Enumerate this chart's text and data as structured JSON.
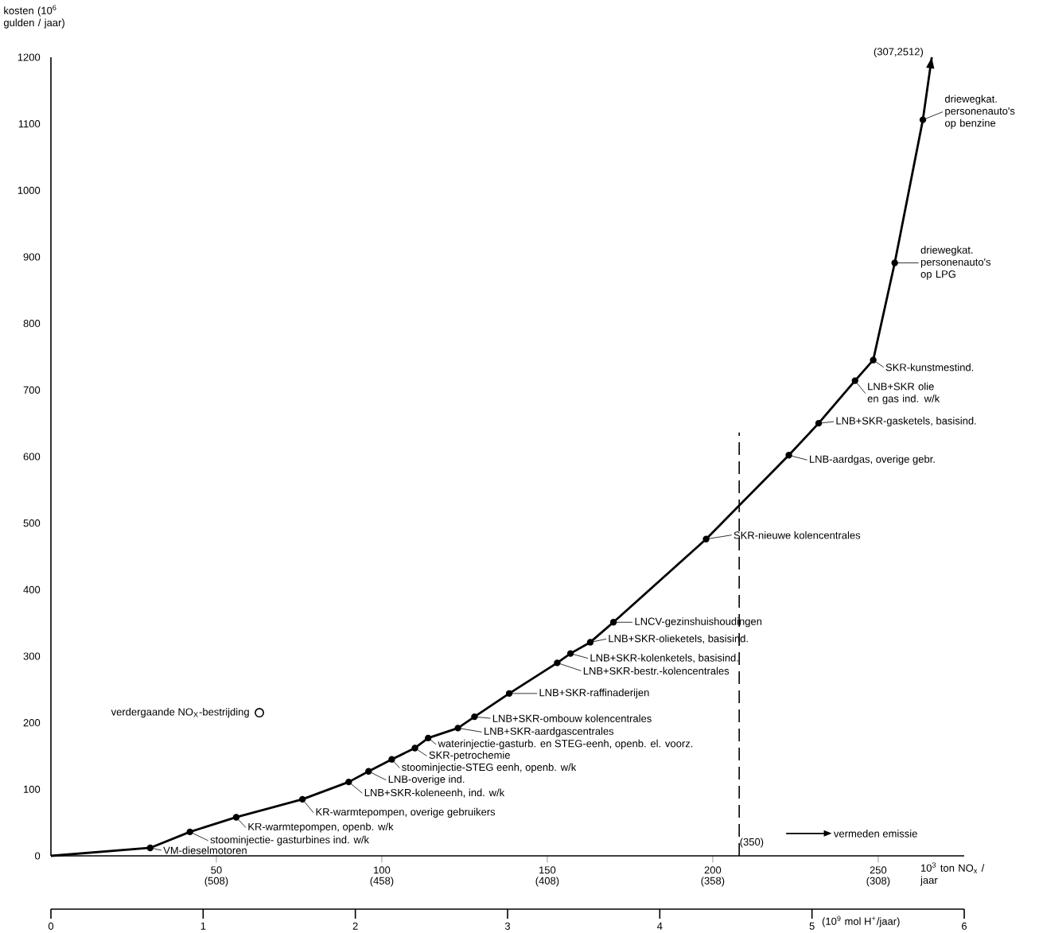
{
  "chart_data": {
    "type": "line",
    "xlabel": "10$^{3}$ ton NO$_{x}$ / jaar",
    "ylabel": "kosten (10$^{6}$ gulden / jaar)",
    "xlim": [
      0,
      276
    ],
    "ylim": [
      0,
      1200
    ],
    "xticks": [
      50,
      100,
      150,
      200,
      250
    ],
    "yticks": [
      0,
      100,
      200,
      300,
      400,
      500,
      600,
      700,
      800,
      900,
      1000,
      1100,
      1200
    ],
    "x2lim": [
      0,
      6
    ],
    "x2ticks": [
      0,
      1,
      2,
      3,
      4,
      5,
      6
    ],
    "x2label": "(10$^{9}$ mol H$^{+}$/jaar)",
    "marker": "circle",
    "series": [
      {
        "color": "#000000",
        "x": [
          0,
          30,
          42,
          56,
          76,
          90,
          96,
          103,
          110,
          114,
          123,
          128,
          138.5,
          153,
          157,
          163,
          170,
          198,
          223,
          232,
          243,
          248.5,
          255,
          263.5,
          266.2
        ],
        "values": [
          0,
          12,
          36,
          58,
          85,
          111,
          127,
          145,
          162,
          177,
          192,
          209,
          244,
          290,
          304,
          321,
          351,
          476,
          602,
          650,
          714,
          745,
          891,
          1106,
          1200
        ]
      },
      {
        "type": "scatter",
        "name": "verdergaande NO$_{X}$-bestrijding",
        "color": "#000000",
        "x": [
          63
        ],
        "values": [
          215
        ]
      }
    ],
    "ref_lines": [
      {
        "axis": "x",
        "value": 208,
        "line_style": "dashed",
        "color": "#000000"
      }
    ],
    "annotations": [
      {
        "text": "VM-dieselmotoren",
        "x": 30,
        "y": 12
      },
      {
        "text": "stoominjectie- gasturbines ind. w/k",
        "x": 42,
        "y": 36
      },
      {
        "text": "KR-warmtepompen, openb. w/k",
        "x": 56,
        "y": 58
      },
      {
        "text": "KR-warmtepompen, overige gebruikers",
        "x": 76,
        "y": 85
      },
      {
        "text": "LNB+SKR-koleneenh, ind. w/k",
        "x": 90,
        "y": 111
      },
      {
        "text": "LNB-overige ind.",
        "x": 96,
        "y": 127
      },
      {
        "text": "stoominjectie-STEG eenh, openb. w/k",
        "x": 103,
        "y": 145
      },
      {
        "text": "SKR-petrochemie",
        "x": 110,
        "y": 162
      },
      {
        "text": "waterinjectie-gasturb. en STEG-eenh, openb. el. voorz.",
        "x": 114,
        "y": 177
      },
      {
        "text": "LNB+SKR-aardgascentrales",
        "x": 123,
        "y": 192
      },
      {
        "text": "LNB+SKR-ombouw kolencentrales",
        "x": 128,
        "y": 209
      },
      {
        "text": "LNB+SKR-raffinaderijen",
        "x": 138.5,
        "y": 244
      },
      {
        "text": "LNB+SKR-bestr.-kolencentrales",
        "x": 153,
        "y": 290
      },
      {
        "text": "LNB+SKR-kolenketels, basisind.",
        "x": 157,
        "y": 304
      },
      {
        "text": "LNB+SKR-olieketels, basisind.",
        "x": 163,
        "y": 321
      },
      {
        "text": "LNCV-gezinshuishoudingen",
        "x": 170,
        "y": 351
      },
      {
        "text": "SKR-nieuwe kolencentrales",
        "x": 198,
        "y": 476
      },
      {
        "text": "LNB-aardgas, overige gebr.",
        "x": 223,
        "y": 602
      },
      {
        "text": "LNB+SKR-gasketels, basisind.",
        "x": 232,
        "y": 650
      },
      {
        "text": "LNB+SKR olie en gas ind. w/k",
        "x": 243,
        "y": 714
      },
      {
        "text": "SKR-kunstmestind.",
        "x": 248.5,
        "y": 745
      },
      {
        "text": "driewegkat. personenauto's op LPG",
        "x": 255,
        "y": 891
      },
      {
        "text": "driewegkat. personenauto's op benzine",
        "x": 263.5,
        "y": 1106
      },
      {
        "text": "(307,2512)",
        "x": 266.2,
        "y": 1200
      },
      "vermeden emissie",
      "(350)",
      "(508)",
      "(458)",
      "(408)",
      "(358)",
      "(308)"
    ]
  }
}
